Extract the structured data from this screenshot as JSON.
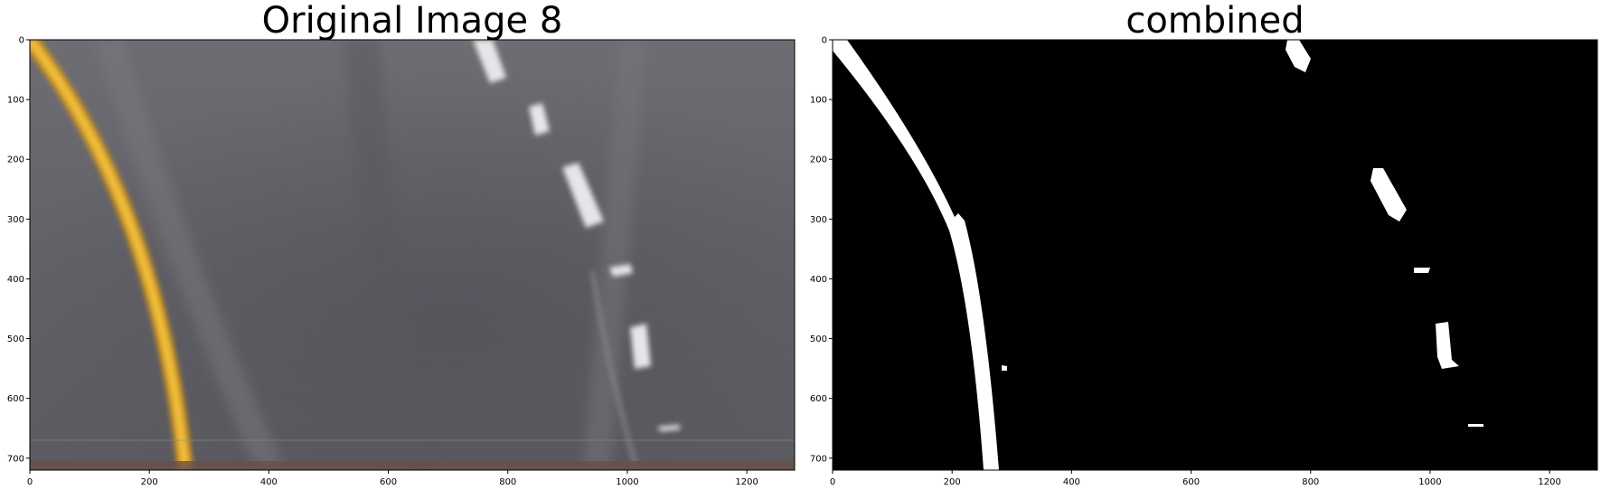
{
  "panels": [
    {
      "title": "Original Image 8",
      "x_ticks": [
        "0",
        "200",
        "400",
        "600",
        "800",
        "1000",
        "1200"
      ],
      "y_ticks": [
        "0",
        "100",
        "200",
        "300",
        "400",
        "500",
        "600",
        "700"
      ]
    },
    {
      "title": "combined",
      "x_ticks": [
        "0",
        "200",
        "400",
        "600",
        "800",
        "1000",
        "1200"
      ],
      "y_ticks": [
        "0",
        "100",
        "200",
        "300",
        "400",
        "500",
        "600",
        "700"
      ]
    }
  ],
  "image": {
    "width": 1280,
    "height": 720,
    "road_color": "#6b6a70",
    "road_color_dark": "#55545a",
    "yellow_line_color": "#e8b330",
    "dash_color": "#e8e8e8",
    "binary_bg": "#000000",
    "binary_fg": "#ffffff"
  }
}
